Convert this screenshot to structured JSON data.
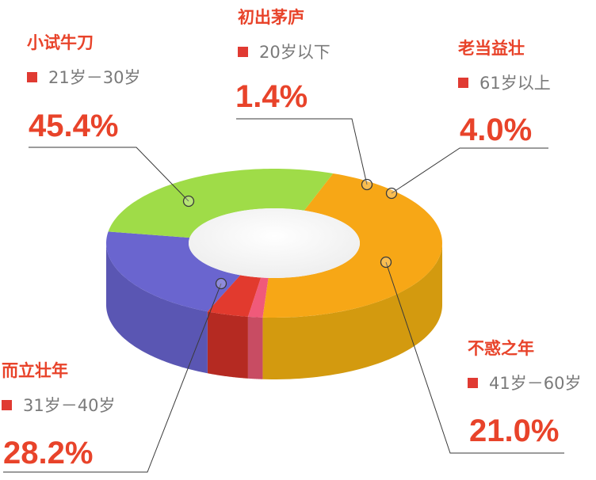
{
  "chart_data": {
    "type": "pie",
    "style": "3d-donut",
    "series": [
      {
        "category": "小试牛刀",
        "range": "21岁－30岁",
        "value": 45.4,
        "label": "45.4%",
        "color": "#f7a716",
        "side_color": "#d39a0f"
      },
      {
        "category": "初出茅庐",
        "range": "20岁以下",
        "value": 1.4,
        "label": "1.4%",
        "color": "#f05a7a",
        "side_color": "#c84c63"
      },
      {
        "category": "老当益壮",
        "range": "61岁以上",
        "value": 4.0,
        "label": "4.0%",
        "color": "#e23a2e",
        "side_color": "#b52a22"
      },
      {
        "category": "不惑之年",
        "range": "41岁－60岁",
        "value": 21.0,
        "label": "21.0%",
        "color": "#6a65cf",
        "side_color": "#5a56b3"
      },
      {
        "category": "而立壮年",
        "range": "31岁－40岁",
        "value": 28.2,
        "label": "28.2%",
        "color": "#9fdc48",
        "side_color": "#76b335"
      }
    ]
  }
}
